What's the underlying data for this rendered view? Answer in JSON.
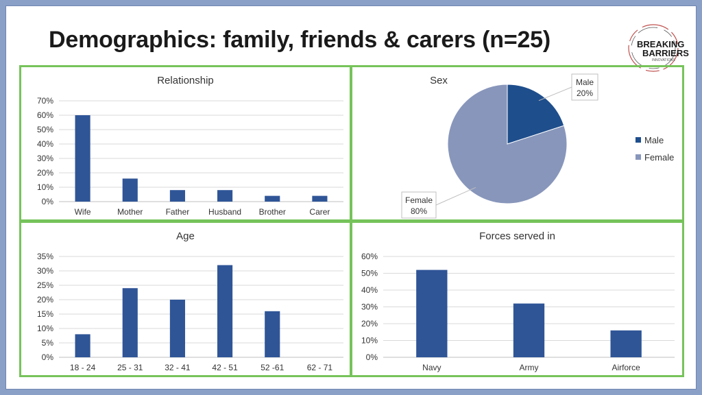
{
  "slide": {
    "title": "Demographics: family, friends & carers (n=25)"
  },
  "logo": {
    "line1": "BREAKING",
    "line2": "BARRIERS",
    "line3": "INNOVATIONS",
    "icon": "circle-swoosh-logo"
  },
  "colors": {
    "bar": "#2f5597",
    "male": "#1f4e8c",
    "female": "#8896bb",
    "panel_border": "#76c35a"
  },
  "chart_data": [
    {
      "type": "bar",
      "title": "Relationship",
      "categories": [
        "Wife",
        "Mother",
        "Father",
        "Husband",
        "Brother",
        "Carer"
      ],
      "values": [
        60,
        16,
        8,
        8,
        4,
        4
      ],
      "ylim": [
        0,
        70
      ],
      "yticks": [
        0,
        10,
        20,
        30,
        40,
        50,
        60,
        70
      ],
      "tick_suffix": "%",
      "grid": true
    },
    {
      "type": "pie",
      "title": "Sex",
      "labels": [
        "Male",
        "Female"
      ],
      "values": [
        20,
        80
      ],
      "data_labels": [
        "20%",
        "80%"
      ],
      "legend": "right"
    },
    {
      "type": "bar",
      "title": "Age",
      "categories": [
        "18 - 24",
        "25 - 31",
        "32 - 41",
        "42 - 51",
        "52 -61",
        "62 - 71"
      ],
      "values": [
        8,
        24,
        20,
        32,
        16,
        0
      ],
      "ylim": [
        0,
        35
      ],
      "yticks": [
        0,
        5,
        10,
        15,
        20,
        25,
        30,
        35
      ],
      "tick_suffix": "%",
      "grid": true
    },
    {
      "type": "bar",
      "title": "Forces served in",
      "categories": [
        "Navy",
        "Army",
        "Airforce"
      ],
      "values": [
        52,
        32,
        16
      ],
      "ylim": [
        0,
        60
      ],
      "yticks": [
        0,
        10,
        20,
        30,
        40,
        50,
        60
      ],
      "tick_suffix": "%",
      "grid": true
    }
  ]
}
